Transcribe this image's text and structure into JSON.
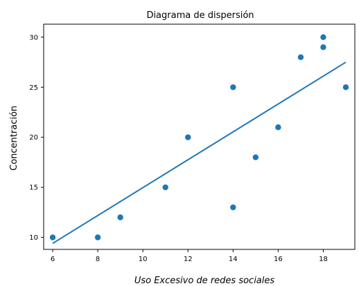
{
  "chart_data": {
    "type": "scatter",
    "title": "Diagrama de dispersión",
    "xlabel": "Uso Excesivo de redes sociales",
    "ylabel": "Concentración",
    "xlim": [
      5.6,
      19.4
    ],
    "ylim": [
      8.8,
      31.3
    ],
    "x_ticks": [
      6,
      8,
      10,
      12,
      14,
      16,
      18
    ],
    "y_ticks": [
      10,
      15,
      20,
      25,
      30
    ],
    "grid": false,
    "series": [
      {
        "points": [
          {
            "x": 6,
            "y": 10
          },
          {
            "x": 8,
            "y": 10
          },
          {
            "x": 9,
            "y": 12
          },
          {
            "x": 11,
            "y": 15
          },
          {
            "x": 12,
            "y": 20
          },
          {
            "x": 14,
            "y": 25
          },
          {
            "x": 14,
            "y": 13
          },
          {
            "x": 15,
            "y": 18
          },
          {
            "x": 16,
            "y": 21
          },
          {
            "x": 17,
            "y": 28
          },
          {
            "x": 18,
            "y": 30
          },
          {
            "x": 18,
            "y": 29
          },
          {
            "x": 19,
            "y": 25
          }
        ]
      }
    ],
    "trendline": {
      "x": [
        6,
        19
      ],
      "y": [
        9.4,
        27.5
      ]
    },
    "colors": {
      "points": "#1f77b4",
      "trendline": "#1f77b4",
      "axes": "#000000"
    }
  }
}
